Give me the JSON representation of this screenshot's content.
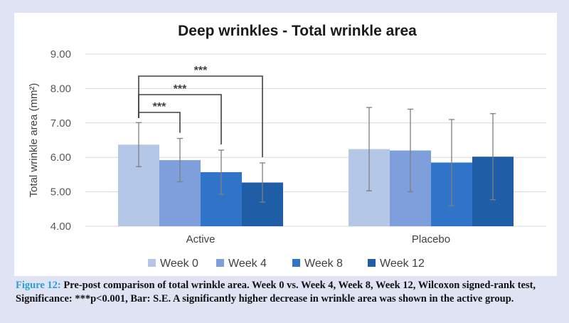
{
  "chart_data": {
    "type": "bar",
    "title": "Deep wrinkles - Total wrinkle area",
    "ylabel": "Total wrinkle area (mm²)",
    "xlabel": "",
    "ylim": [
      4.0,
      9.0
    ],
    "yticks": [
      "4.00",
      "5.00",
      "6.00",
      "7.00",
      "8.00",
      "9.00"
    ],
    "categories": [
      "Active",
      "Placebo"
    ],
    "grid": true,
    "legend_position": "bottom",
    "series": [
      {
        "name": "Week 0",
        "color": "#b4c7e7",
        "values": [
          6.37,
          6.24
        ],
        "errors": [
          0.64,
          1.21
        ]
      },
      {
        "name": "Week 4",
        "color": "#7e9fdc",
        "values": [
          5.92,
          6.2
        ],
        "errors": [
          0.63,
          1.2
        ]
      },
      {
        "name": "Week 8",
        "color": "#2f74c9",
        "values": [
          5.57,
          5.85
        ],
        "errors": [
          0.64,
          1.25
        ]
      },
      {
        "name": "Week 12",
        "color": "#1f5ea6",
        "values": [
          5.27,
          6.02
        ],
        "errors": [
          0.57,
          1.25
        ]
      }
    ],
    "significance": [
      {
        "category": "Active",
        "from": "Week 0",
        "to": "Week 4",
        "label": "***"
      },
      {
        "category": "Active",
        "from": "Week 0",
        "to": "Week 8",
        "label": "***"
      },
      {
        "category": "Active",
        "from": "Week 0",
        "to": "Week 12",
        "label": "***"
      }
    ]
  },
  "caption": {
    "label": "Figure 12:",
    "text": " Pre-post comparison of total wrinkle area. Week 0 vs. Week 4, Week 8, Week 12, Wilcoxon signed-rank test, Significance: ***p<0.001, Bar: S.E. A significantly higher decrease in wrinkle area was shown in the active group."
  }
}
